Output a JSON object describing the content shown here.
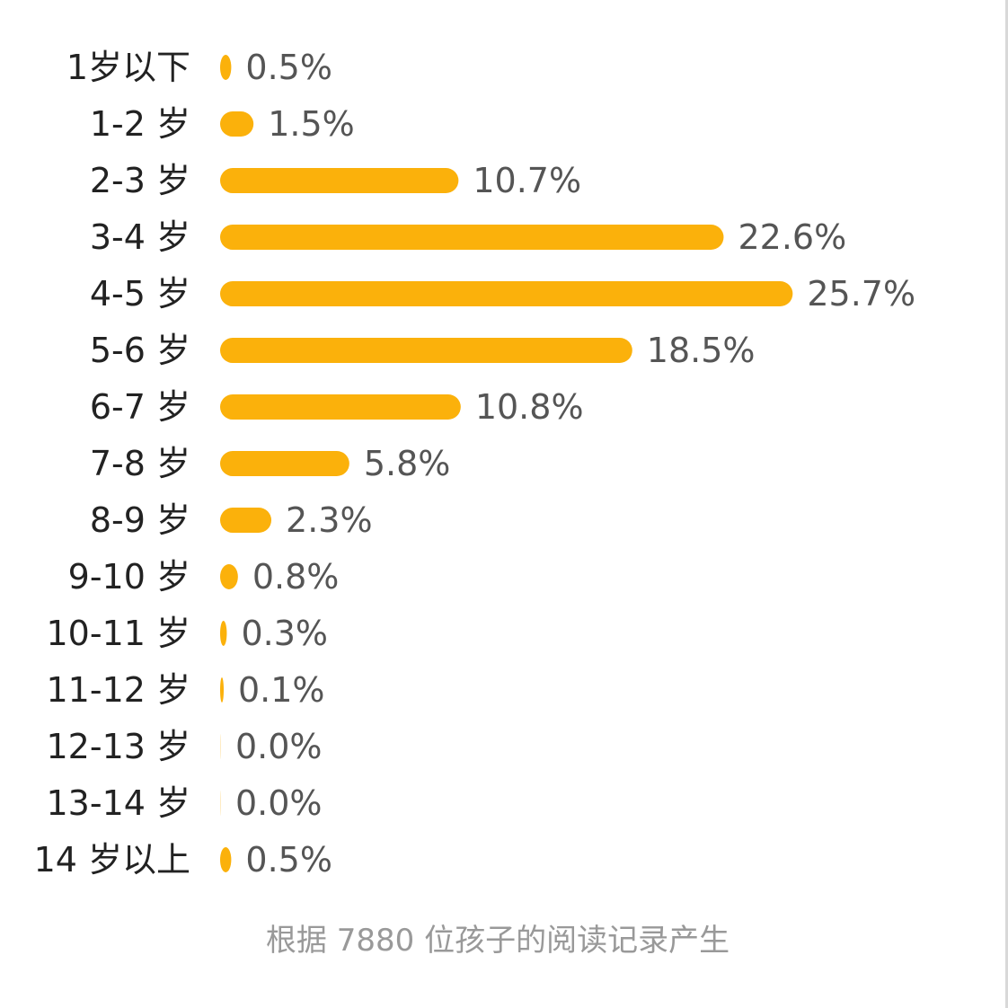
{
  "chart_data": {
    "type": "bar",
    "orientation": "horizontal",
    "categories": [
      "1岁以下",
      "1-2 岁",
      "2-3 岁",
      "3-4 岁",
      "4-5 岁",
      "5-6 岁",
      "6-7 岁",
      "7-8 岁",
      "8-9 岁",
      "9-10 岁",
      "10-11 岁",
      "11-12 岁",
      "12-13 岁",
      "13-14 岁",
      "14 岁以上"
    ],
    "values": [
      0.5,
      1.5,
      10.7,
      22.6,
      25.7,
      18.5,
      10.8,
      5.8,
      2.3,
      0.8,
      0.3,
      0.1,
      0.0,
      0.0,
      0.5
    ],
    "value_labels": [
      "0.5%",
      "1.5%",
      "10.7%",
      "22.6%",
      "25.7%",
      "18.5%",
      "10.8%",
      "5.8%",
      "2.3%",
      "0.8%",
      "0.3%",
      "0.1%",
      "0.0%",
      "0.0%",
      "0.5%"
    ],
    "unit": "%",
    "bar_color": "#FBB10B",
    "category_label_color": "#222222",
    "value_label_color": "#555555",
    "grid": false,
    "legend": false
  },
  "footnote": "根据 7880 位孩子的阅读记录产生"
}
